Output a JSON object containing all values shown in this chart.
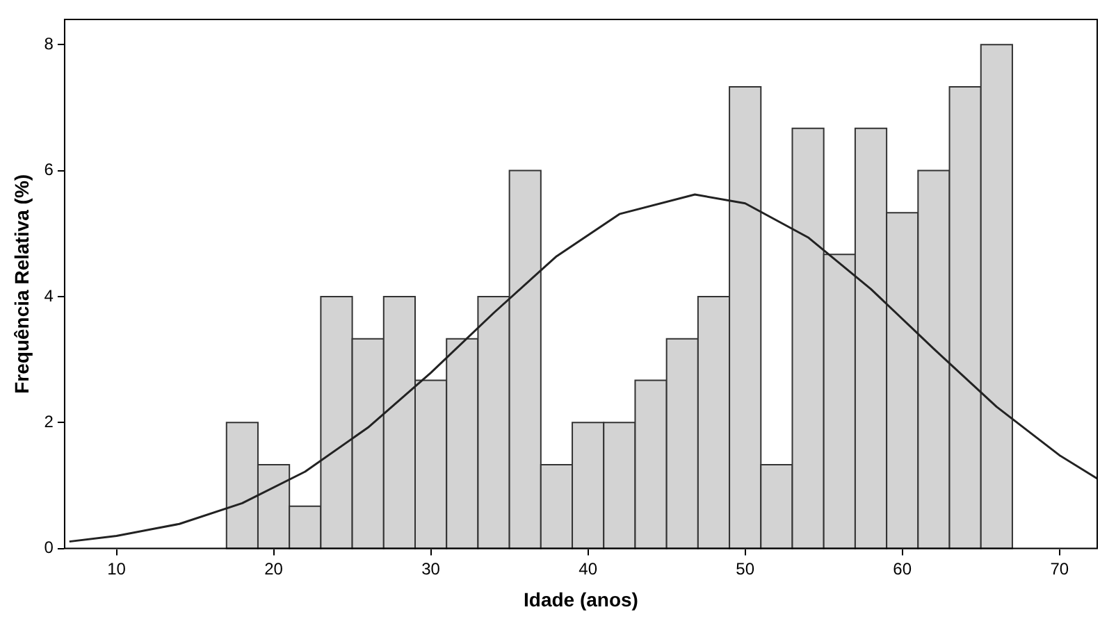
{
  "chart_data": {
    "type": "histogram",
    "xlabel": "Idade (anos)",
    "ylabel": "Frequência Relativa (%)",
    "bins": [
      17,
      19,
      21,
      23,
      25,
      27,
      29,
      31,
      33,
      35,
      37,
      39,
      41,
      43,
      45,
      47,
      49,
      51,
      53,
      55,
      57,
      59,
      61,
      63,
      65,
      67
    ],
    "values": [
      2,
      1.33,
      0.67,
      4,
      3.33,
      4,
      2.67,
      3.33,
      4,
      6,
      1.33,
      2,
      2,
      2.67,
      3.33,
      4,
      7.33,
      1.33,
      6.67,
      4.67,
      6.67,
      5.33,
      6,
      7.33,
      8
    ],
    "color": "#d3d3d3",
    "series": [
      {
        "type": "line",
        "color": "#222222",
        "x": [
          7,
          10,
          14,
          18,
          22,
          26,
          30,
          34,
          38,
          42,
          46.8,
          50,
          54,
          58,
          62,
          66,
          70,
          72.4
        ],
        "values": [
          0.11,
          0.2,
          0.39,
          0.72,
          1.22,
          1.92,
          2.79,
          3.74,
          4.64,
          5.31,
          5.62,
          5.48,
          4.94,
          4.12,
          3.17,
          2.25,
          1.48,
          1.11
        ]
      }
    ],
    "xlim": [
      6.7,
      72.4
    ],
    "xticks": [
      10,
      20,
      30,
      40,
      50,
      60,
      70
    ],
    "ylim": [
      0,
      8.4
    ],
    "yticks": [
      0,
      2,
      4,
      6,
      8
    ],
    "grid": false,
    "legend": false,
    "marker": "none",
    "line_style": "solid"
  }
}
